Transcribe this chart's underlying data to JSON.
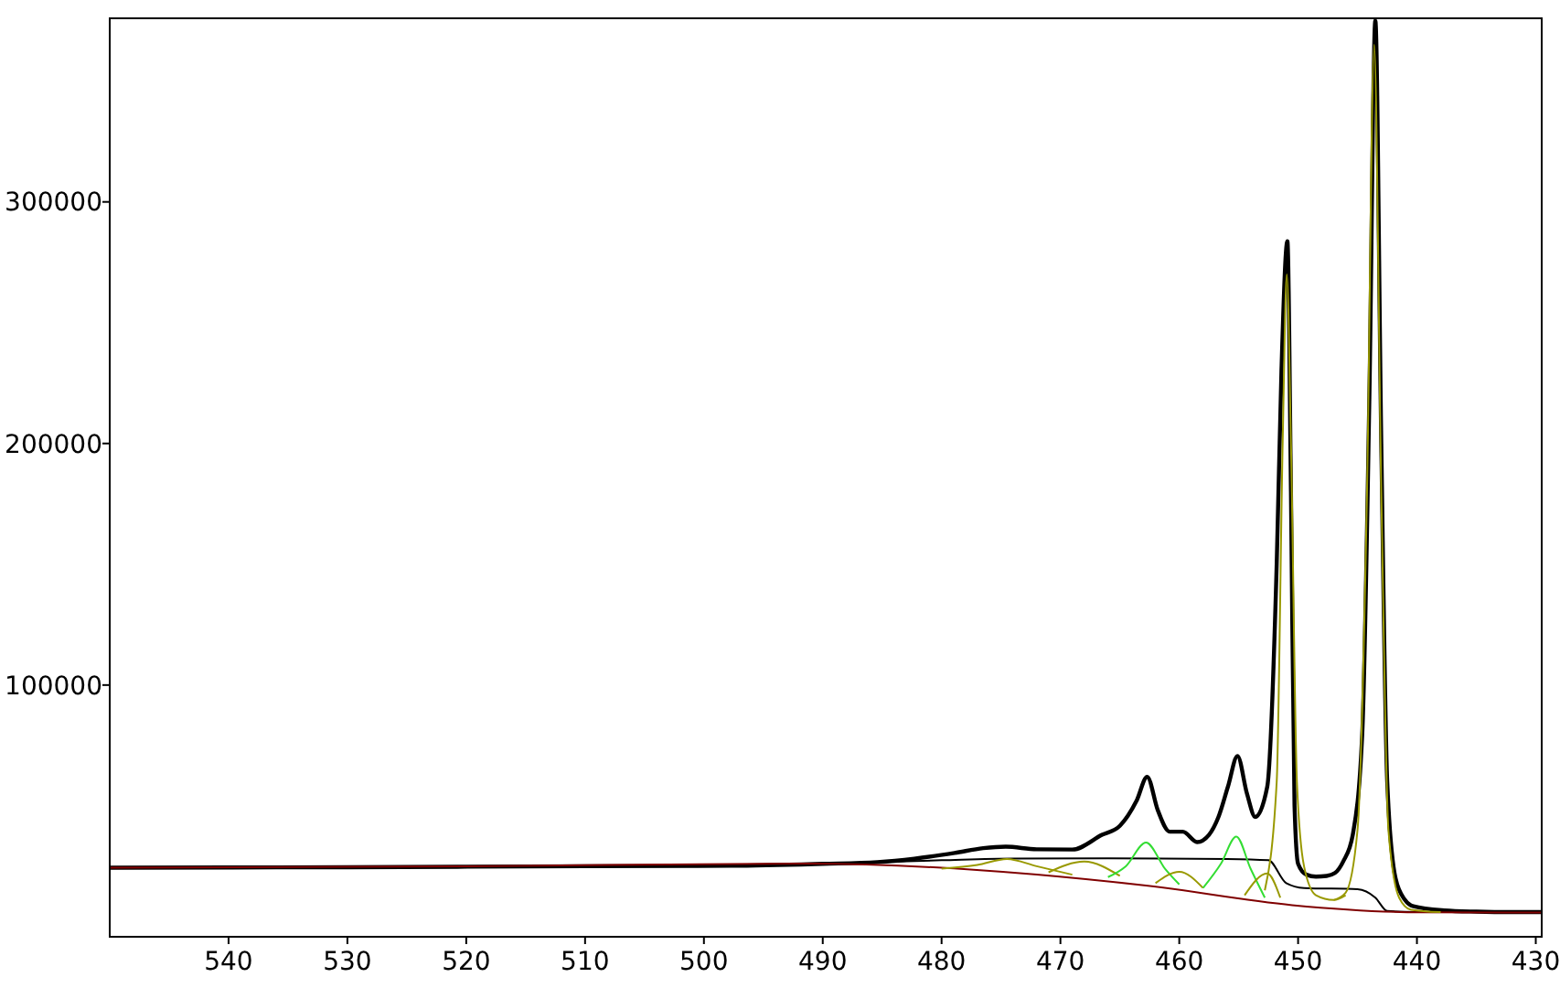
{
  "chart_data": {
    "type": "line",
    "xlim": [
      550,
      429.5
    ],
    "xticks": [
      540,
      530,
      520,
      510,
      500,
      490,
      480,
      470,
      460,
      450,
      440,
      430
    ],
    "ylim": [
      -4200,
      376000
    ],
    "yticks": [
      100000,
      200000,
      300000
    ],
    "grid": false,
    "line_style": "solid",
    "series": [
      {
        "color": "#000000",
        "x": [
          550,
          540,
          530,
          520,
          510,
          497.7,
          490,
          485.4,
          482.3,
          478.9,
          476.5,
          474.6,
          472,
          469,
          466.5,
          465,
          463.6,
          462.7,
          461.8,
          460.8,
          459.7,
          458.5,
          457.5,
          456.7,
          455.9,
          455.1,
          454.3,
          453.6,
          452.6,
          451.8,
          451.4,
          450.9,
          450.6,
          450.3,
          450,
          449.3,
          448.5,
          447.6,
          446.9,
          446.2,
          445.4,
          444.6,
          444,
          443.5,
          443,
          442.5,
          441.8,
          441,
          440.3,
          437.7,
          435,
          432,
          429.5
        ],
        "values": [
          24400,
          24500,
          24600,
          24800,
          25000,
          25200,
          26000,
          26700,
          28100,
          30500,
          32500,
          33100,
          32000,
          31900,
          38000,
          41700,
          52000,
          62000,
          48100,
          39300,
          39300,
          35000,
          38000,
          45400,
          58000,
          70600,
          55000,
          45400,
          57800,
          150000,
          230000,
          283700,
          180000,
          50000,
          26000,
          21500,
          20700,
          21000,
          22200,
          27000,
          38000,
          80000,
          220000,
          375000,
          200000,
          60000,
          20000,
          11000,
          8400,
          6700,
          6200,
          6000,
          6000
        ]
      },
      {
        "color": "#000000",
        "x": [
          490,
          480,
          474,
          466,
          456,
          452.5,
          451,
          449.5,
          445,
          443.5,
          442.5,
          440,
          429.5
        ],
        "values": [
          26000,
          27500,
          28200,
          28300,
          28000,
          27500,
          18000,
          16000,
          15500,
          12000,
          6500,
          6000,
          6000
        ]
      },
      {
        "color": "#800000",
        "x": [
          550,
          520,
          491.5,
          462.8,
          450.5,
          439.7,
          429.5
        ],
        "values": [
          24400,
          25000,
          26100,
          17000,
          8900,
          5900,
          5800
        ]
      },
      {
        "color": "#999900",
        "x": [
          480,
          477,
          474.5,
          472,
          469
        ],
        "values": [
          24000,
          25500,
          28000,
          25000,
          21500
        ]
      },
      {
        "color": "#999900",
        "x": [
          471,
          468,
          465
        ],
        "values": [
          22500,
          26900,
          21000
        ]
      },
      {
        "color": "#33dd33",
        "x": [
          466,
          464.5,
          462.8,
          461.2,
          460
        ],
        "values": [
          20500,
          25000,
          34800,
          24000,
          17500
        ]
      },
      {
        "color": "#999900",
        "x": [
          462,
          460,
          458
        ],
        "values": [
          18000,
          22700,
          16000
        ]
      },
      {
        "color": "#33dd33",
        "x": [
          458,
          456.5,
          455.2,
          454,
          452.8
        ],
        "values": [
          16000,
          26000,
          37300,
          24000,
          12000
        ]
      },
      {
        "color": "#999900",
        "x": [
          454.5,
          452.6,
          451.5
        ],
        "values": [
          13000,
          22000,
          12000
        ]
      },
      {
        "color": "#999900",
        "x": [
          452.8,
          451.8,
          451.3,
          450.95,
          450.6,
          450.1,
          449.5,
          448.5,
          447,
          446
        ],
        "values": [
          15000,
          60000,
          200000,
          270000,
          200000,
          60000,
          25000,
          13000,
          11000,
          13000
        ]
      },
      {
        "color": "#999900",
        "x": [
          447,
          446,
          445,
          444.2,
          443.6,
          443,
          442.4,
          441.5,
          440.5,
          438
        ],
        "values": [
          11000,
          14000,
          40000,
          180000,
          365000,
          180000,
          40000,
          12000,
          7000,
          6000
        ]
      }
    ]
  }
}
